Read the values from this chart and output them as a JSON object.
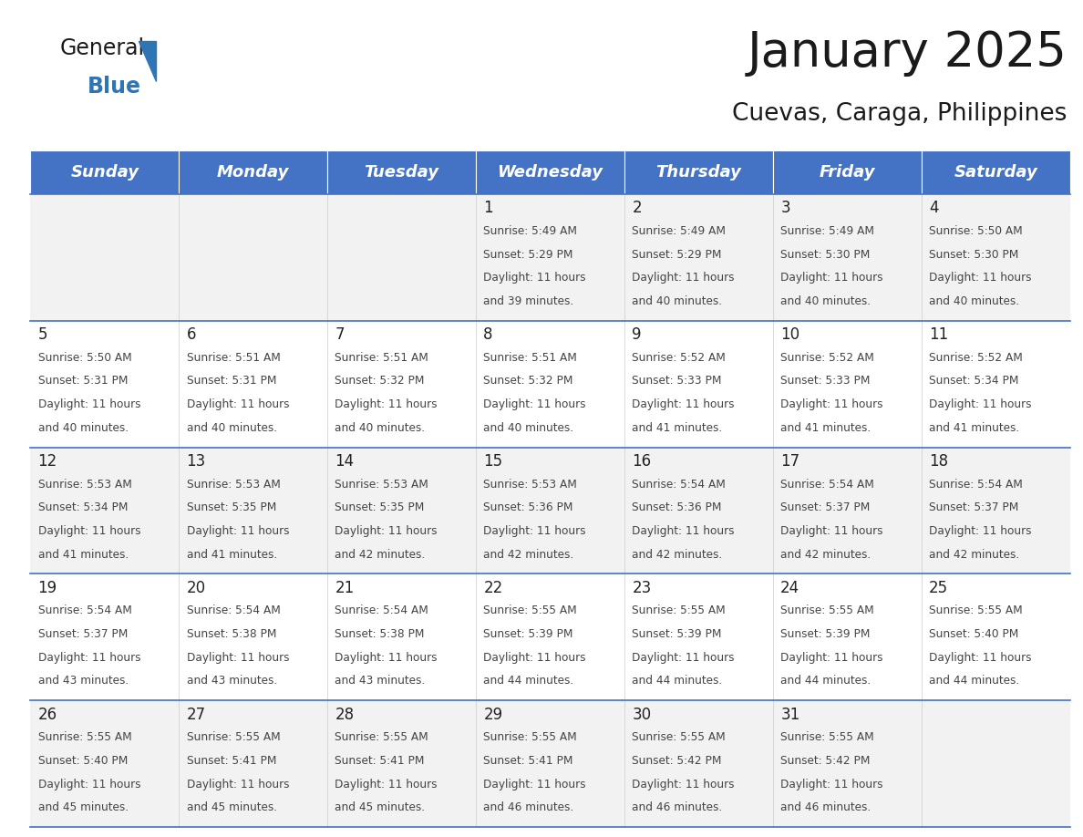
{
  "title": "January 2025",
  "subtitle": "Cuevas, Caraga, Philippines",
  "days_of_week": [
    "Sunday",
    "Monday",
    "Tuesday",
    "Wednesday",
    "Thursday",
    "Friday",
    "Saturday"
  ],
  "header_bg_color": "#4472C4",
  "header_text_color": "#FFFFFF",
  "row_colors": [
    "#F2F2F2",
    "#FFFFFF"
  ],
  "border_color": "#4472C4",
  "alt_border_color": "#3060A0",
  "day_num_color": "#222222",
  "info_color": "#444444",
  "title_color": "#1a1a1a",
  "subtitle_color": "#1a1a1a",
  "logo_general_color": "#1a1a1a",
  "logo_blue_color": "#2E75B6",
  "fig_width": 11.88,
  "fig_height": 9.18,
  "calendar_data": [
    {
      "day": 1,
      "col": 3,
      "row": 0,
      "sunrise": "5:49 AM",
      "sunset": "5:29 PM",
      "daylight_hours": 11,
      "daylight_minutes": 39
    },
    {
      "day": 2,
      "col": 4,
      "row": 0,
      "sunrise": "5:49 AM",
      "sunset": "5:29 PM",
      "daylight_hours": 11,
      "daylight_minutes": 40
    },
    {
      "day": 3,
      "col": 5,
      "row": 0,
      "sunrise": "5:49 AM",
      "sunset": "5:30 PM",
      "daylight_hours": 11,
      "daylight_minutes": 40
    },
    {
      "day": 4,
      "col": 6,
      "row": 0,
      "sunrise": "5:50 AM",
      "sunset": "5:30 PM",
      "daylight_hours": 11,
      "daylight_minutes": 40
    },
    {
      "day": 5,
      "col": 0,
      "row": 1,
      "sunrise": "5:50 AM",
      "sunset": "5:31 PM",
      "daylight_hours": 11,
      "daylight_minutes": 40
    },
    {
      "day": 6,
      "col": 1,
      "row": 1,
      "sunrise": "5:51 AM",
      "sunset": "5:31 PM",
      "daylight_hours": 11,
      "daylight_minutes": 40
    },
    {
      "day": 7,
      "col": 2,
      "row": 1,
      "sunrise": "5:51 AM",
      "sunset": "5:32 PM",
      "daylight_hours": 11,
      "daylight_minutes": 40
    },
    {
      "day": 8,
      "col": 3,
      "row": 1,
      "sunrise": "5:51 AM",
      "sunset": "5:32 PM",
      "daylight_hours": 11,
      "daylight_minutes": 40
    },
    {
      "day": 9,
      "col": 4,
      "row": 1,
      "sunrise": "5:52 AM",
      "sunset": "5:33 PM",
      "daylight_hours": 11,
      "daylight_minutes": 41
    },
    {
      "day": 10,
      "col": 5,
      "row": 1,
      "sunrise": "5:52 AM",
      "sunset": "5:33 PM",
      "daylight_hours": 11,
      "daylight_minutes": 41
    },
    {
      "day": 11,
      "col": 6,
      "row": 1,
      "sunrise": "5:52 AM",
      "sunset": "5:34 PM",
      "daylight_hours": 11,
      "daylight_minutes": 41
    },
    {
      "day": 12,
      "col": 0,
      "row": 2,
      "sunrise": "5:53 AM",
      "sunset": "5:34 PM",
      "daylight_hours": 11,
      "daylight_minutes": 41
    },
    {
      "day": 13,
      "col": 1,
      "row": 2,
      "sunrise": "5:53 AM",
      "sunset": "5:35 PM",
      "daylight_hours": 11,
      "daylight_minutes": 41
    },
    {
      "day": 14,
      "col": 2,
      "row": 2,
      "sunrise": "5:53 AM",
      "sunset": "5:35 PM",
      "daylight_hours": 11,
      "daylight_minutes": 42
    },
    {
      "day": 15,
      "col": 3,
      "row": 2,
      "sunrise": "5:53 AM",
      "sunset": "5:36 PM",
      "daylight_hours": 11,
      "daylight_minutes": 42
    },
    {
      "day": 16,
      "col": 4,
      "row": 2,
      "sunrise": "5:54 AM",
      "sunset": "5:36 PM",
      "daylight_hours": 11,
      "daylight_minutes": 42
    },
    {
      "day": 17,
      "col": 5,
      "row": 2,
      "sunrise": "5:54 AM",
      "sunset": "5:37 PM",
      "daylight_hours": 11,
      "daylight_minutes": 42
    },
    {
      "day": 18,
      "col": 6,
      "row": 2,
      "sunrise": "5:54 AM",
      "sunset": "5:37 PM",
      "daylight_hours": 11,
      "daylight_minutes": 42
    },
    {
      "day": 19,
      "col": 0,
      "row": 3,
      "sunrise": "5:54 AM",
      "sunset": "5:37 PM",
      "daylight_hours": 11,
      "daylight_minutes": 43
    },
    {
      "day": 20,
      "col": 1,
      "row": 3,
      "sunrise": "5:54 AM",
      "sunset": "5:38 PM",
      "daylight_hours": 11,
      "daylight_minutes": 43
    },
    {
      "day": 21,
      "col": 2,
      "row": 3,
      "sunrise": "5:54 AM",
      "sunset": "5:38 PM",
      "daylight_hours": 11,
      "daylight_minutes": 43
    },
    {
      "day": 22,
      "col": 3,
      "row": 3,
      "sunrise": "5:55 AM",
      "sunset": "5:39 PM",
      "daylight_hours": 11,
      "daylight_minutes": 44
    },
    {
      "day": 23,
      "col": 4,
      "row": 3,
      "sunrise": "5:55 AM",
      "sunset": "5:39 PM",
      "daylight_hours": 11,
      "daylight_minutes": 44
    },
    {
      "day": 24,
      "col": 5,
      "row": 3,
      "sunrise": "5:55 AM",
      "sunset": "5:39 PM",
      "daylight_hours": 11,
      "daylight_minutes": 44
    },
    {
      "day": 25,
      "col": 6,
      "row": 3,
      "sunrise": "5:55 AM",
      "sunset": "5:40 PM",
      "daylight_hours": 11,
      "daylight_minutes": 44
    },
    {
      "day": 26,
      "col": 0,
      "row": 4,
      "sunrise": "5:55 AM",
      "sunset": "5:40 PM",
      "daylight_hours": 11,
      "daylight_minutes": 45
    },
    {
      "day": 27,
      "col": 1,
      "row": 4,
      "sunrise": "5:55 AM",
      "sunset": "5:41 PM",
      "daylight_hours": 11,
      "daylight_minutes": 45
    },
    {
      "day": 28,
      "col": 2,
      "row": 4,
      "sunrise": "5:55 AM",
      "sunset": "5:41 PM",
      "daylight_hours": 11,
      "daylight_minutes": 45
    },
    {
      "day": 29,
      "col": 3,
      "row": 4,
      "sunrise": "5:55 AM",
      "sunset": "5:41 PM",
      "daylight_hours": 11,
      "daylight_minutes": 46
    },
    {
      "day": 30,
      "col": 4,
      "row": 4,
      "sunrise": "5:55 AM",
      "sunset": "5:42 PM",
      "daylight_hours": 11,
      "daylight_minutes": 46
    },
    {
      "day": 31,
      "col": 5,
      "row": 4,
      "sunrise": "5:55 AM",
      "sunset": "5:42 PM",
      "daylight_hours": 11,
      "daylight_minutes": 46
    }
  ]
}
